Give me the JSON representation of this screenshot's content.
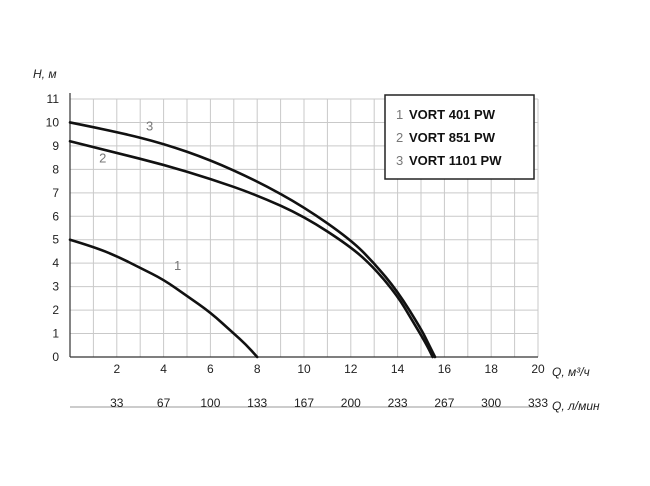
{
  "chart_data": {
    "type": "line",
    "title": "",
    "ylabel": "H, м",
    "xlabel": "Q, м³/ч",
    "xlabel_secondary": "Q, л/мин",
    "xlim": [
      0,
      20
    ],
    "ylim": [
      0,
      11
    ],
    "x_ticks": [
      2,
      4,
      6,
      8,
      10,
      12,
      14,
      16,
      18,
      20
    ],
    "x_ticks_secondary": [
      {
        "x": 2,
        "label": "33"
      },
      {
        "x": 4,
        "label": "67"
      },
      {
        "x": 6,
        "label": "100"
      },
      {
        "x": 8,
        "label": "133"
      },
      {
        "x": 10,
        "label": "167"
      },
      {
        "x": 12,
        "label": "200"
      },
      {
        "x": 14,
        "label": "233"
      },
      {
        "x": 16,
        "label": "267"
      },
      {
        "x": 18,
        "label": "300"
      },
      {
        "x": 20,
        "label": "333"
      }
    ],
    "y_ticks": [
      0,
      1,
      2,
      3,
      4,
      5,
      6,
      7,
      8,
      9,
      10,
      11
    ],
    "grid": true,
    "legend_position": "top-right",
    "legend": [
      {
        "num": "1",
        "name": "VORT 401 PW"
      },
      {
        "num": "2",
        "name": "VORT 851 PW"
      },
      {
        "num": "3",
        "name": "VORT 1101 PW"
      }
    ],
    "series": [
      {
        "curve_label": "1",
        "label_at": [
          4.6,
          3.7
        ],
        "x": [
          0,
          1,
          2,
          3,
          4,
          5,
          6,
          7,
          7.5,
          8.0
        ],
        "y": [
          5.0,
          4.7,
          4.3,
          3.8,
          3.3,
          2.6,
          1.9,
          1.0,
          0.55,
          0
        ]
      },
      {
        "curve_label": "2",
        "label_at": [
          1.4,
          8.3
        ],
        "x": [
          0,
          2,
          4,
          6,
          8,
          10,
          12,
          13,
          14,
          14.6,
          15.2,
          15.5
        ],
        "y": [
          9.2,
          8.7,
          8.2,
          7.6,
          6.9,
          6.0,
          4.7,
          3.8,
          2.6,
          1.6,
          0.6,
          0
        ]
      },
      {
        "curve_label": "3",
        "label_at": [
          3.4,
          9.65
        ],
        "x": [
          0,
          2,
          4,
          6,
          8,
          10,
          12,
          13,
          14,
          15,
          15.3,
          15.6
        ],
        "y": [
          10.0,
          9.6,
          9.1,
          8.4,
          7.5,
          6.4,
          5.0,
          4.0,
          2.8,
          1.2,
          0.6,
          0
        ]
      }
    ]
  }
}
